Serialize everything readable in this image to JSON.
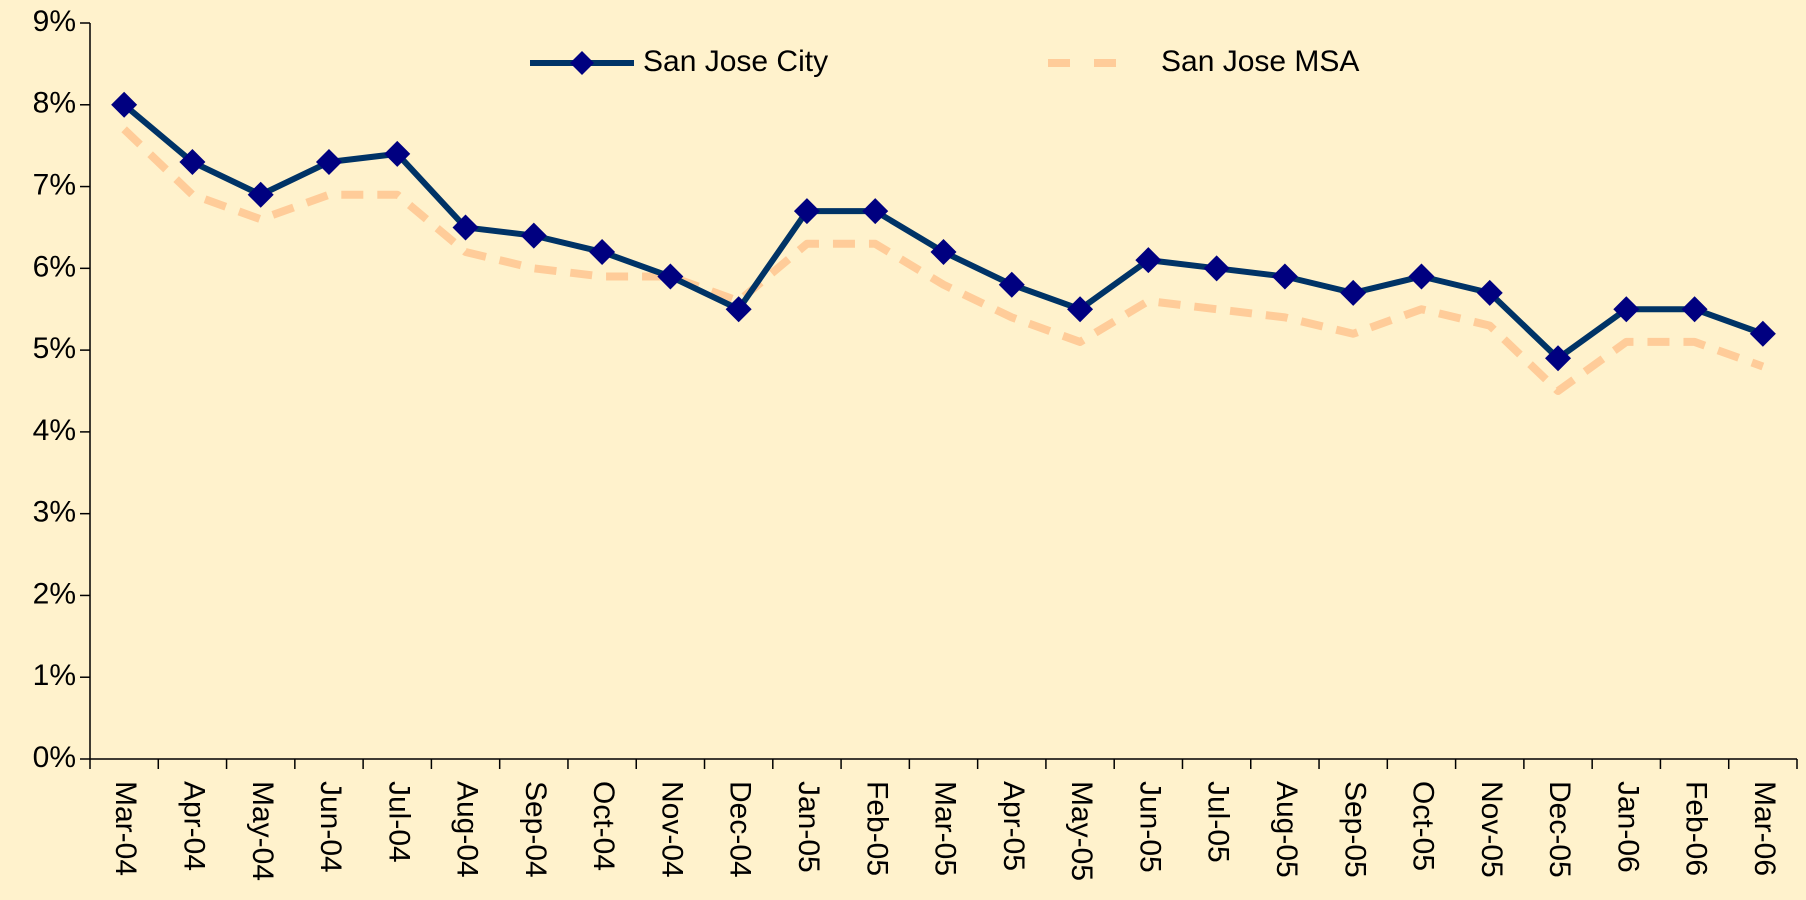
{
  "chart_data": {
    "type": "line",
    "categories": [
      "Mar-04",
      "Apr-04",
      "May-04",
      "Jun-04",
      "Jul-04",
      "Aug-04",
      "Sep-04",
      "Oct-04",
      "Nov-04",
      "Dec-04",
      "Jan-05",
      "Feb-05",
      "Mar-05",
      "Apr-05",
      "May-05",
      "Jun-05",
      "Jul-05",
      "Aug-05",
      "Sep-05",
      "Oct-05",
      "Nov-05",
      "Dec-05",
      "Jan-06",
      "Feb-06",
      "Mar-06"
    ],
    "series": [
      {
        "name": "San Jose City",
        "color": "#003366",
        "marker_color": "#000080",
        "dashed": false,
        "values": [
          8.0,
          7.3,
          6.9,
          7.3,
          7.4,
          6.5,
          6.4,
          6.2,
          5.9,
          5.5,
          6.7,
          6.7,
          6.2,
          5.8,
          5.5,
          6.1,
          6.0,
          5.9,
          5.7,
          5.9,
          5.7,
          4.9,
          5.5,
          5.5,
          5.2
        ]
      },
      {
        "name": "San Jose MSA",
        "color": "#FFCC99",
        "dashed": true,
        "values": [
          7.7,
          6.9,
          6.6,
          6.9,
          6.9,
          6.2,
          6.0,
          5.9,
          5.9,
          5.6,
          6.3,
          6.3,
          5.8,
          5.4,
          5.1,
          5.6,
          5.5,
          5.4,
          5.2,
          5.5,
          5.3,
          4.5,
          5.1,
          5.1,
          4.8
        ]
      }
    ],
    "ylim": [
      0,
      9
    ],
    "yticks": [
      {
        "value": 0,
        "label": "0%"
      },
      {
        "value": 1,
        "label": "1%"
      },
      {
        "value": 2,
        "label": "2%"
      },
      {
        "value": 3,
        "label": "3%"
      },
      {
        "value": 4,
        "label": "4%"
      },
      {
        "value": 5,
        "label": "5%"
      },
      {
        "value": 6,
        "label": "6%"
      },
      {
        "value": 7,
        "label": "7%"
      },
      {
        "value": 8,
        "label": "8%"
      },
      {
        "value": 9,
        "label": "9%"
      }
    ],
    "grid": false,
    "background": "#FFF2CC"
  }
}
